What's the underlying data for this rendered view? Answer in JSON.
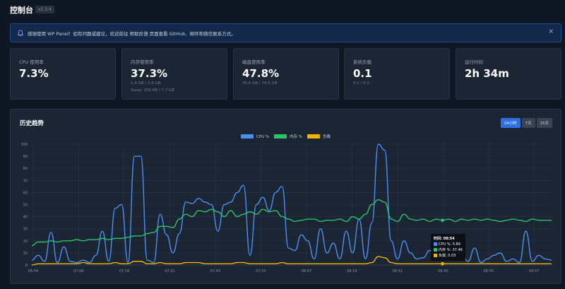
{
  "header": {
    "title": "控制台",
    "version": "v1.3.4"
  },
  "alert": {
    "text": "感谢使用 WP Panel！如有问题或建议，欢迎前往 帮助反馈 页面查看 GitHub、邮件和微信联系方式。",
    "close": "×"
  },
  "cards": [
    {
      "label": "CPU 使用率",
      "value": "7.3%",
      "sub1": "",
      "sub2": ""
    },
    {
      "label": "内存使用率",
      "value": "37.3%",
      "sub1": "1.4 GB / 3.8 GB",
      "sub2": "Swap: 268 KB / 7.7 GB"
    },
    {
      "label": "磁盘使用率",
      "value": "47.8%",
      "sub1": "35.6 GB / 74.5 GB",
      "sub2": ""
    },
    {
      "label": "系统负载",
      "value": "0.1",
      "sub1": "0.1 / 0.2",
      "sub2": ""
    },
    {
      "label": "运行时间",
      "value": "2h 34m",
      "sub1": "",
      "sub2": ""
    }
  ],
  "history": {
    "title": "历史趋势",
    "ranges": [
      "24小时",
      "7天",
      "15天"
    ],
    "active_range": "24小时"
  },
  "tooltip": {
    "title": "时间: 08:54",
    "rows": [
      "CPU %: 5.89",
      "内存 %: 37.46",
      "负载: 0.03"
    ]
  },
  "colors": {
    "cpu": "#4a8ff0",
    "mem": "#2bc46a",
    "load": "#f0b400",
    "accent": "#2f6fe0"
  },
  "chart_data": {
    "type": "line",
    "ylim": [
      0,
      100
    ],
    "yticks": [
      0,
      10,
      20,
      30,
      40,
      50,
      60,
      70,
      80,
      90,
      100
    ],
    "xticks": [
      "06:54",
      "07:06",
      "07:18",
      "07:31",
      "07:43",
      "07:55",
      "08:07",
      "08:19",
      "08:31",
      "08:43",
      "08:55",
      "09:07"
    ],
    "series": [
      {
        "name": "CPU %",
        "values": [
          4,
          8,
          3,
          27,
          2,
          15,
          3,
          2,
          4,
          2,
          8,
          28,
          3,
          47,
          50,
          2,
          90,
          90,
          4,
          2,
          42,
          25,
          10,
          26,
          52,
          51,
          55,
          52,
          50,
          28,
          50,
          52,
          60,
          66,
          8,
          50,
          56,
          45,
          60,
          65,
          14,
          12,
          25,
          20,
          5,
          30,
          10,
          18,
          5,
          28,
          10,
          38,
          5,
          35,
          100,
          95,
          20,
          5,
          20,
          10,
          5,
          6,
          12,
          4,
          10,
          5,
          12,
          8,
          3,
          14,
          2,
          5,
          8,
          10,
          3,
          5,
          2,
          28,
          3,
          8,
          5,
          4
        ]
      },
      {
        "name": "内存 %",
        "values": [
          16,
          19,
          19,
          20,
          19,
          20,
          20,
          21,
          20,
          21,
          21,
          22,
          21,
          22,
          22,
          23,
          24,
          24,
          26,
          27,
          32,
          32,
          31,
          38,
          42,
          40,
          45,
          44,
          46,
          44,
          40,
          45,
          40,
          42,
          44,
          42,
          46,
          44,
          45,
          40,
          38,
          36,
          37,
          38,
          38,
          36,
          37,
          37,
          38,
          36,
          40,
          38,
          42,
          50,
          54,
          52,
          38,
          36,
          42,
          38,
          37,
          38,
          36,
          38,
          37,
          38,
          36,
          38,
          37,
          38,
          37,
          38,
          37,
          36,
          37,
          38,
          37,
          36,
          38,
          37,
          37,
          37
        ]
      },
      {
        "name": "负载",
        "values": [
          0,
          1,
          1,
          1,
          1,
          1,
          1,
          1,
          2,
          1,
          1,
          1,
          1,
          2,
          1,
          1,
          3,
          3,
          1,
          1,
          2,
          1,
          1,
          1,
          2,
          2,
          2,
          1,
          1,
          1,
          1,
          1,
          2,
          2,
          1,
          1,
          1,
          1,
          1,
          2,
          1,
          1,
          1,
          1,
          1,
          1,
          1,
          1,
          1,
          1,
          1,
          1,
          1,
          2,
          7,
          6,
          2,
          1,
          1,
          1,
          1,
          1,
          1,
          1,
          1,
          1,
          1,
          1,
          1,
          1,
          1,
          1,
          1,
          1,
          1,
          1,
          1,
          1,
          1,
          1,
          1,
          1
        ]
      }
    ],
    "legend_position": "top-center",
    "grid": true
  }
}
